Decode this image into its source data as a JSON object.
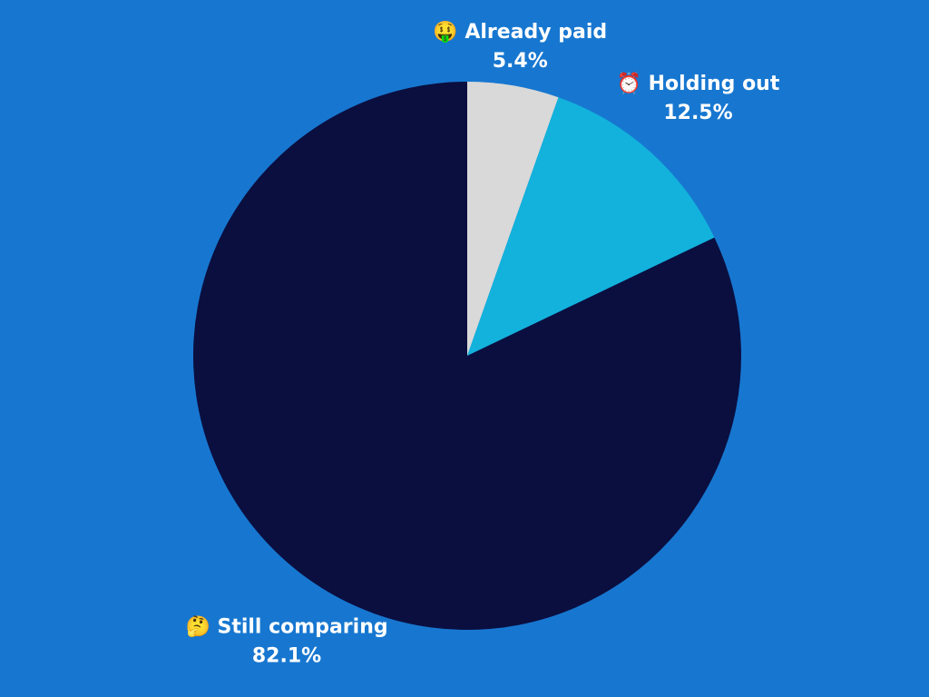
{
  "chart_data": {
    "type": "pie",
    "categories": [
      "🤑 Already paid",
      "⏰ Holding out",
      "🤔 Still comparing"
    ],
    "values": [
      5.4,
      12.5,
      82.1
    ],
    "value_labels": [
      "5.4%",
      "12.5%",
      "82.1%"
    ],
    "colors": [
      "#d9d9d9",
      "#12b2dc",
      "#0a0f40"
    ]
  }
}
